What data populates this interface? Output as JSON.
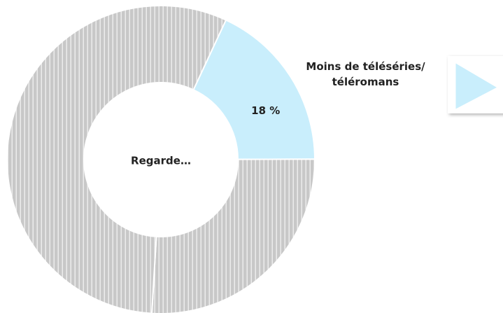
{
  "chart_data": {
    "type": "donut",
    "center_label": "Regarde…",
    "categories": [
      "Moins de téléséries/ téléromans",
      null,
      null
    ],
    "values": [
      18,
      26,
      56
    ],
    "value_labels": [
      "18 %",
      null,
      null
    ],
    "colors": [
      "#c9eefc",
      "#c8c8c8",
      "#c8c8c8"
    ],
    "striped": [
      false,
      true,
      true
    ]
  }
}
